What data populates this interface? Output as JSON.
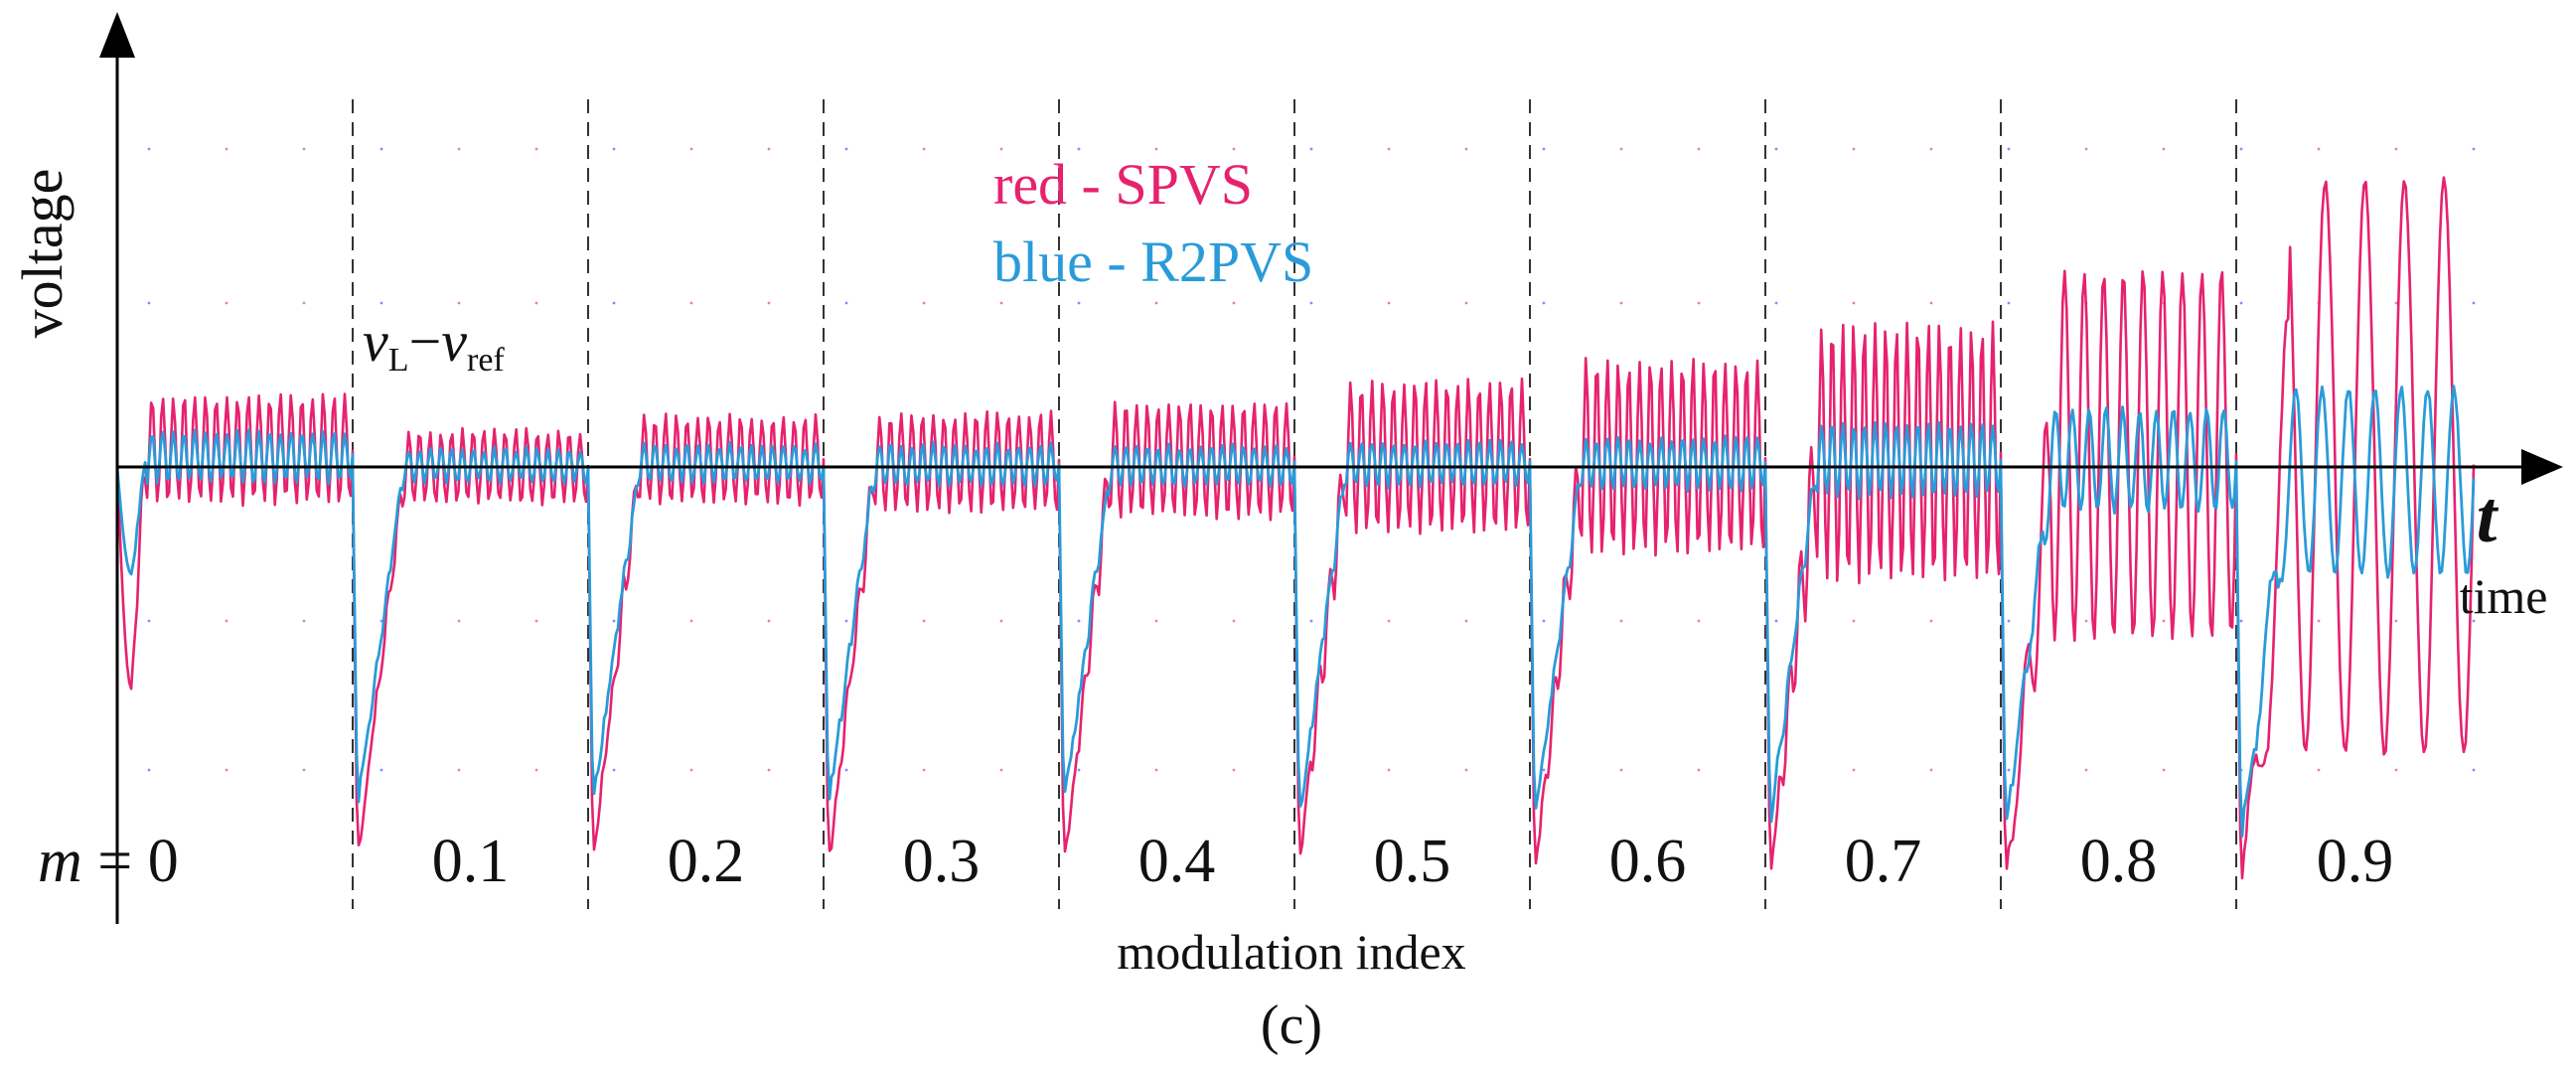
{
  "chart_data": {
    "type": "line",
    "title": "",
    "ylabel": "voltage",
    "xlabel": "modulation index",
    "time_label": "time",
    "time_symbol": "t",
    "caption": "(c)",
    "signal_label": {
      "v1": "v",
      "v1_sub": "L",
      "minus": "−",
      "v2": "v",
      "v2_sub": "ref"
    },
    "m_symbol": "m",
    "m_prefix": " = ",
    "segments": [
      "0",
      "0.1",
      "0.2",
      "0.3",
      "0.4",
      "0.5",
      "0.6",
      "0.7",
      "0.8",
      "0.9"
    ],
    "ylim": [
      -1.3,
      1.0
    ],
    "legend": [
      {
        "text": "red - SPVS",
        "color": "#e6226e"
      },
      {
        "text": "blue - R2PVS",
        "color": "#2a9bd9"
      }
    ],
    "series": [
      {
        "name": "SPVS",
        "color": "#e6226e",
        "envelope": [
          {
            "m": "0",
            "dip": -0.62,
            "upper": 0.2,
            "lower": -0.1
          },
          {
            "m": "0.1",
            "dip": -1.1,
            "upper": 0.1,
            "lower": -0.1
          },
          {
            "m": "0.2",
            "dip": -1.1,
            "upper": 0.14,
            "lower": -0.1
          },
          {
            "m": "0.3",
            "dip": -1.12,
            "upper": 0.15,
            "lower": -0.12
          },
          {
            "m": "0.4",
            "dip": -1.12,
            "upper": 0.18,
            "lower": -0.14
          },
          {
            "m": "0.5",
            "dip": -1.12,
            "upper": 0.24,
            "lower": -0.18
          },
          {
            "m": "0.6",
            "dip": -1.15,
            "upper": 0.3,
            "lower": -0.24
          },
          {
            "m": "0.7",
            "dip": -1.15,
            "upper": 0.4,
            "lower": -0.32
          },
          {
            "m": "0.8",
            "dip": -1.18,
            "upper": 0.55,
            "lower": -0.48
          },
          {
            "m": "0.9",
            "dip": -1.2,
            "upper": 0.8,
            "lower": -0.8
          }
        ]
      },
      {
        "name": "R2PVS",
        "color": "#2a9bd9",
        "envelope": [
          {
            "m": "0",
            "dip": -0.3,
            "upper": 0.1,
            "lower": -0.04
          },
          {
            "m": "0.1",
            "dip": -0.95,
            "upper": 0.05,
            "lower": -0.04
          },
          {
            "m": "0.2",
            "dip": -0.95,
            "upper": 0.06,
            "lower": -0.04
          },
          {
            "m": "0.3",
            "dip": -0.95,
            "upper": 0.06,
            "lower": -0.05
          },
          {
            "m": "0.4",
            "dip": -0.95,
            "upper": 0.06,
            "lower": -0.05
          },
          {
            "m": "0.5",
            "dip": -0.98,
            "upper": 0.07,
            "lower": -0.05
          },
          {
            "m": "0.6",
            "dip": -1.0,
            "upper": 0.08,
            "lower": -0.06
          },
          {
            "m": "0.7",
            "dip": -1.0,
            "upper": 0.12,
            "lower": -0.08
          },
          {
            "m": "0.8",
            "dip": -1.02,
            "upper": 0.16,
            "lower": -0.12
          },
          {
            "m": "0.9",
            "dip": -1.05,
            "upper": 0.22,
            "lower": -0.3
          }
        ]
      }
    ],
    "grid": "dotted"
  }
}
